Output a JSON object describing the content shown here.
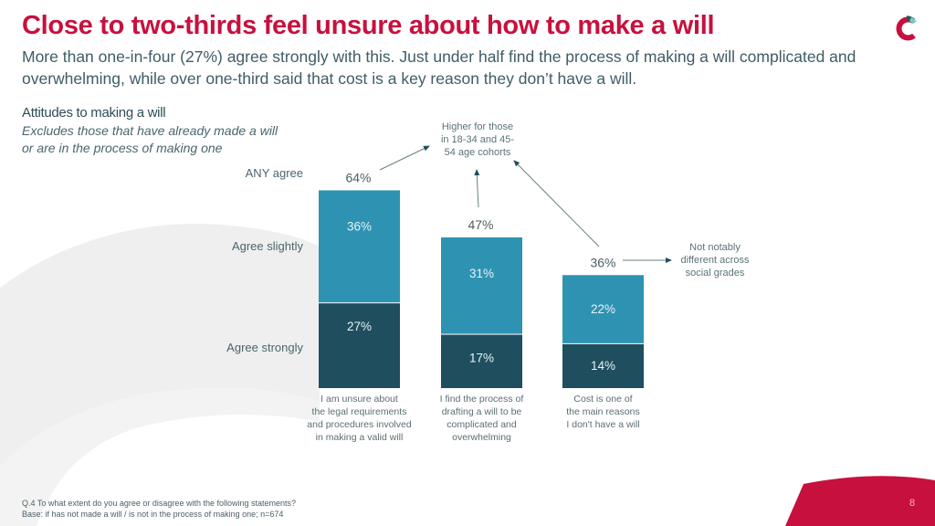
{
  "slide": {
    "title": "Close to two-thirds feel unsure about how to make a will",
    "subtitle": "More than one-in-four (27%) agree strongly with this. Just under half find the process of making a will complicated and overwhelming, while over one-third said that cost is a key reason they don’t have a will.",
    "page_number": "8",
    "logo_icon": "brand-c-logo-icon"
  },
  "section": {
    "title": "Attitudes to making a will",
    "note_line1": "Excludes those that have already made a will",
    "note_line2": "or are in the process of making one"
  },
  "row_labels": {
    "any_agree": "ANY agree",
    "agree_slightly": "Agree slightly",
    "agree_strongly": "Agree strongly"
  },
  "annotations": {
    "age": [
      "Higher for those",
      "in 18-34 and 45-",
      "54 age cohorts"
    ],
    "social": [
      "Not notably",
      "different across",
      "social grades"
    ]
  },
  "footer": {
    "question": "Q.4 To what extent do you agree or disagree with the following statements?",
    "base": "Base: if has not made a will / is not in the process of making one; n=674"
  },
  "colors": {
    "brand_red": "#c8103e",
    "agree_slightly": "#2e93b2",
    "agree_strongly": "#1f4e5f",
    "text_dark": "#3b5a63"
  },
  "chart_data": {
    "type": "bar",
    "stacked": true,
    "title": "Attitudes to making a will",
    "subtitle": "Excludes those that have already made a will or are in the process of making one",
    "categories": [
      [
        "I am unsure about",
        "the legal requirements",
        "and procedures involved",
        "in making a valid will"
      ],
      [
        "I find the process of",
        "drafting a will to be",
        "complicated and",
        "overwhelming"
      ],
      [
        "Cost is one of",
        "the main reasons",
        "I don't have a will"
      ]
    ],
    "series": [
      {
        "name": "Agree strongly",
        "values": [
          27,
          17,
          14
        ],
        "labels": [
          "27%",
          "17%",
          "14%"
        ]
      },
      {
        "name": "Agree slightly",
        "values": [
          36,
          31,
          22
        ],
        "labels": [
          "36%",
          "31%",
          "22%"
        ]
      }
    ],
    "totals": {
      "name": "ANY agree",
      "values": [
        64,
        47,
        36
      ],
      "labels": [
        "64%",
        "47%",
        "36%"
      ]
    },
    "ylim": [
      0,
      64
    ],
    "xlabel": "",
    "ylabel": "",
    "grid": false,
    "legend": "row labels on left",
    "annotations": [
      {
        "text": "Higher for those in 18-34 and 45-54 age cohorts",
        "targets": [
          "64%",
          "47%",
          "36%"
        ]
      },
      {
        "text": "Not notably different across social grades",
        "targets": [
          "36%"
        ]
      }
    ]
  }
}
